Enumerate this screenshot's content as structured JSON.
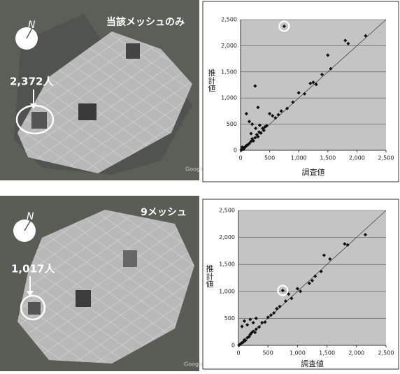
{
  "maps": [
    {
      "title": "当該メッシュのみ",
      "callout": "2,372人",
      "north": "N",
      "credit": "Google"
    },
    {
      "title": "9メッシュ",
      "callout": "1,017人",
      "north": "N",
      "credit": "Google"
    }
  ],
  "chart_data": [
    {
      "type": "scatter",
      "ylabel": "推計値",
      "xlabel": "調査値",
      "xlim": [
        0,
        2500
      ],
      "ylim": [
        0,
        2500
      ],
      "xticks": [
        0,
        500,
        {
          "value": 1000,
          "label": "1,000"
        },
        {
          "value": 1500,
          "label": "1,500"
        },
        {
          "value": 2000,
          "label": "2,000"
        },
        {
          "value": 2500,
          "label": "2,500"
        }
      ],
      "yticks": [
        0,
        500,
        {
          "value": 1000,
          "label": "1,000"
        },
        {
          "value": 1500,
          "label": "1,500"
        },
        {
          "value": 2000,
          "label": "2,000"
        },
        {
          "value": 2500,
          "label": "2,500"
        }
      ],
      "grid": true,
      "diagonal": true,
      "color": "#111111",
      "highlight": 29,
      "x": [
        20,
        40,
        60,
        80,
        100,
        120,
        150,
        180,
        200,
        220,
        250,
        280,
        300,
        320,
        350,
        380,
        400,
        420,
        450,
        100,
        150,
        200,
        250,
        300,
        500,
        550,
        600,
        650,
        700,
        750,
        800,
        900,
        1000,
        1100,
        1200,
        1250,
        1300,
        1400,
        1500,
        1550,
        1800,
        1850,
        2150,
        50,
        30,
        10,
        180,
        260,
        330
      ],
      "y": [
        10,
        30,
        50,
        60,
        90,
        100,
        130,
        170,
        220,
        180,
        240,
        300,
        260,
        350,
        330,
        420,
        380,
        450,
        470,
        700,
        550,
        500,
        1230,
        820,
        700,
        660,
        620,
        680,
        750,
        2372,
        800,
        920,
        1100,
        1080,
        1280,
        1300,
        1260,
        1450,
        1820,
        1560,
        2100,
        2040,
        2190,
        20,
        60,
        5,
        320,
        420,
        480
      ]
    },
    {
      "type": "scatter",
      "ylabel": "推計値",
      "xlabel": "調査値",
      "xlim": [
        0,
        2500
      ],
      "ylim": [
        0,
        2500
      ],
      "xticks": [
        0,
        500,
        {
          "value": 1000,
          "label": "1,000"
        },
        {
          "value": 1500,
          "label": "1,500"
        },
        {
          "value": 2000,
          "label": "2,000"
        },
        {
          "value": 2500,
          "label": "2,500"
        }
      ],
      "yticks": [
        0,
        500,
        {
          "value": 1000,
          "label": "1,000"
        },
        {
          "value": 1500,
          "label": "1,500"
        },
        {
          "value": 2000,
          "label": "2,000"
        },
        {
          "value": 2500,
          "label": "2,500"
        }
      ],
      "grid": true,
      "diagonal": true,
      "color": "#111111",
      "highlight": 25,
      "x": [
        10,
        30,
        50,
        80,
        100,
        120,
        150,
        180,
        200,
        220,
        250,
        280,
        300,
        350,
        400,
        450,
        100,
        150,
        200,
        300,
        500,
        550,
        600,
        650,
        700,
        750,
        800,
        850,
        900,
        1000,
        1050,
        1200,
        1250,
        1300,
        1400,
        1450,
        1550,
        1800,
        1850,
        2150,
        60,
        250
      ],
      "y": [
        5,
        20,
        40,
        60,
        100,
        90,
        140,
        160,
        200,
        230,
        260,
        240,
        300,
        340,
        420,
        430,
        450,
        380,
        480,
        500,
        520,
        560,
        600,
        680,
        720,
        1017,
        820,
        950,
        870,
        1050,
        1000,
        1150,
        1200,
        1280,
        1370,
        1670,
        1600,
        1880,
        1860,
        2050,
        350,
        420
      ]
    }
  ]
}
